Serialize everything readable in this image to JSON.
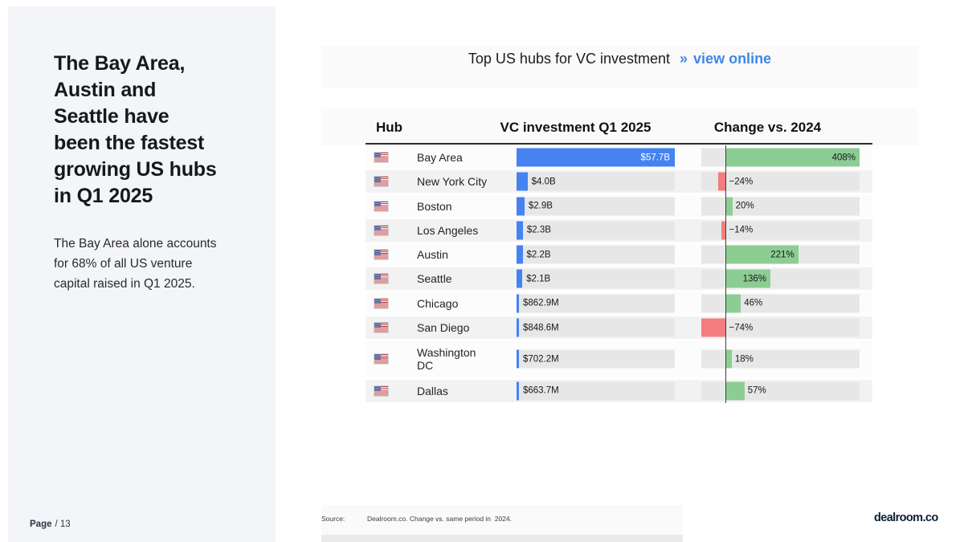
{
  "sidebar": {
    "title": "The Bay Area,\nAustin and\nSeattle have\nbeen the fastest\ngrowing US hubs\nin Q1 2025",
    "subtitle": "The Bay Area alone accounts\nfor 68% of all US venture\ncapital raised in Q1 2025."
  },
  "header": {
    "title": "Top US hubs for VC investment",
    "link_arrow": "»",
    "link_label": "view online"
  },
  "table": {
    "columns": {
      "hub": "Hub",
      "investment": "VC investment Q1 2025",
      "change": "Change vs. 2024"
    },
    "rows": [
      {
        "hub": "Bay Area",
        "investment_label": "$57.7B",
        "investment_b": 57.7,
        "change_label": "408%",
        "change_pct": 408
      },
      {
        "hub": "New York City",
        "investment_label": "$4.0B",
        "investment_b": 4.0,
        "change_label": "−24%",
        "change_pct": -24
      },
      {
        "hub": "Boston",
        "investment_label": "$2.9B",
        "investment_b": 2.9,
        "change_label": "20%",
        "change_pct": 20
      },
      {
        "hub": "Los Angeles",
        "investment_label": "$2.3B",
        "investment_b": 2.3,
        "change_label": "−14%",
        "change_pct": -14
      },
      {
        "hub": "Austin",
        "investment_label": "$2.2B",
        "investment_b": 2.2,
        "change_label": "221%",
        "change_pct": 221
      },
      {
        "hub": "Seattle",
        "investment_label": "$2.1B",
        "investment_b": 2.1,
        "change_label": "136%",
        "change_pct": 136
      },
      {
        "hub": "Chicago",
        "investment_label": "$862.9M",
        "investment_b": 0.8629,
        "change_label": "46%",
        "change_pct": 46
      },
      {
        "hub": "San Diego",
        "investment_label": "$848.6M",
        "investment_b": 0.8486,
        "change_label": "−74%",
        "change_pct": -74
      },
      {
        "hub": "Washington\nDC",
        "investment_label": "$702.2M",
        "investment_b": 0.7022,
        "change_label": "18%",
        "change_pct": 18
      },
      {
        "hub": "Dallas",
        "investment_label": "$663.7M",
        "investment_b": 0.6637,
        "change_label": "57%",
        "change_pct": 57
      }
    ]
  },
  "chart_data": {
    "type": "bar",
    "orientation": "horizontal",
    "title": "Top US hubs for VC investment",
    "categories": [
      "Bay Area",
      "New York City",
      "Boston",
      "Los Angeles",
      "Austin",
      "Seattle",
      "Chicago",
      "San Diego",
      "Washington DC",
      "Dallas"
    ],
    "series": [
      {
        "name": "VC investment Q1 2025",
        "unit": "USD billions",
        "values": [
          57.7,
          4.0,
          2.9,
          2.3,
          2.2,
          2.1,
          0.8629,
          0.8486,
          0.7022,
          0.6637
        ],
        "labels": [
          "$57.7B",
          "$4.0B",
          "$2.9B",
          "$2.3B",
          "$2.2B",
          "$2.1B",
          "$862.9M",
          "$848.6M",
          "$702.2M",
          "$663.7M"
        ],
        "xlim": [
          0,
          57.7
        ]
      },
      {
        "name": "Change vs. 2024",
        "unit": "percent",
        "values": [
          408,
          -24,
          20,
          -14,
          221,
          136,
          46,
          -74,
          18,
          57
        ],
        "labels": [
          "408%",
          "−24%",
          "20%",
          "−14%",
          "221%",
          "136%",
          "46%",
          "−74%",
          "18%",
          "57%"
        ],
        "xlim": [
          -76,
          409
        ],
        "zero_line": true
      }
    ],
    "grid": false,
    "legend_position": "none"
  },
  "footer": {
    "page_label": "Page",
    "page_number": "/ 13",
    "source_label": "Source:",
    "source_text": "Dealroom.co. Change vs. same period in  2024.",
    "logo": "dealroom.co"
  },
  "colors": {
    "investment_bar_blue": "#4483f0",
    "positive_green": "#8ccd93",
    "negative_red": "#f57d7d",
    "link_blue": "#3f86e8",
    "logo_navy": "#0b1f3a",
    "left_panel_bg": "#f3f5f9",
    "band_bg": "#fafafa",
    "track_gray": "#e7e7e7"
  }
}
